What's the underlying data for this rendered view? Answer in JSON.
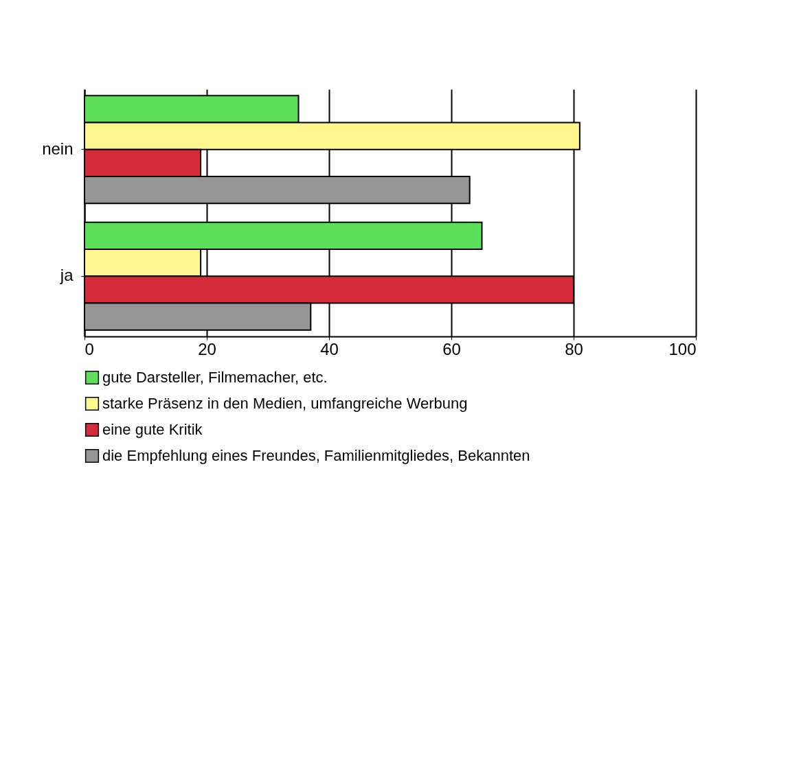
{
  "chart_data": {
    "type": "bar",
    "orientation": "horizontal",
    "categories": [
      "nein",
      "ja"
    ],
    "series": [
      {
        "name": "gute Darsteller, Filmemacher, etc.",
        "color": "#5ce05c",
        "values": [
          35,
          65
        ]
      },
      {
        "name": "starke Präsenz in den Medien, umfangreiche Werbung",
        "color": "#fff68f",
        "values": [
          81,
          19
        ]
      },
      {
        "name": "eine gute Kritik",
        "color": "#d42a3a",
        "values": [
          19,
          80
        ]
      },
      {
        "name": "die Empfehlung eines Freundes, Familienmitgliedes, Bekannten",
        "color": "#969696",
        "values": [
          63,
          37
        ]
      }
    ],
    "xlim": [
      0,
      100
    ],
    "xticks": [
      0,
      20,
      40,
      60,
      80,
      100
    ],
    "grid": "x",
    "legend": "bottom"
  }
}
